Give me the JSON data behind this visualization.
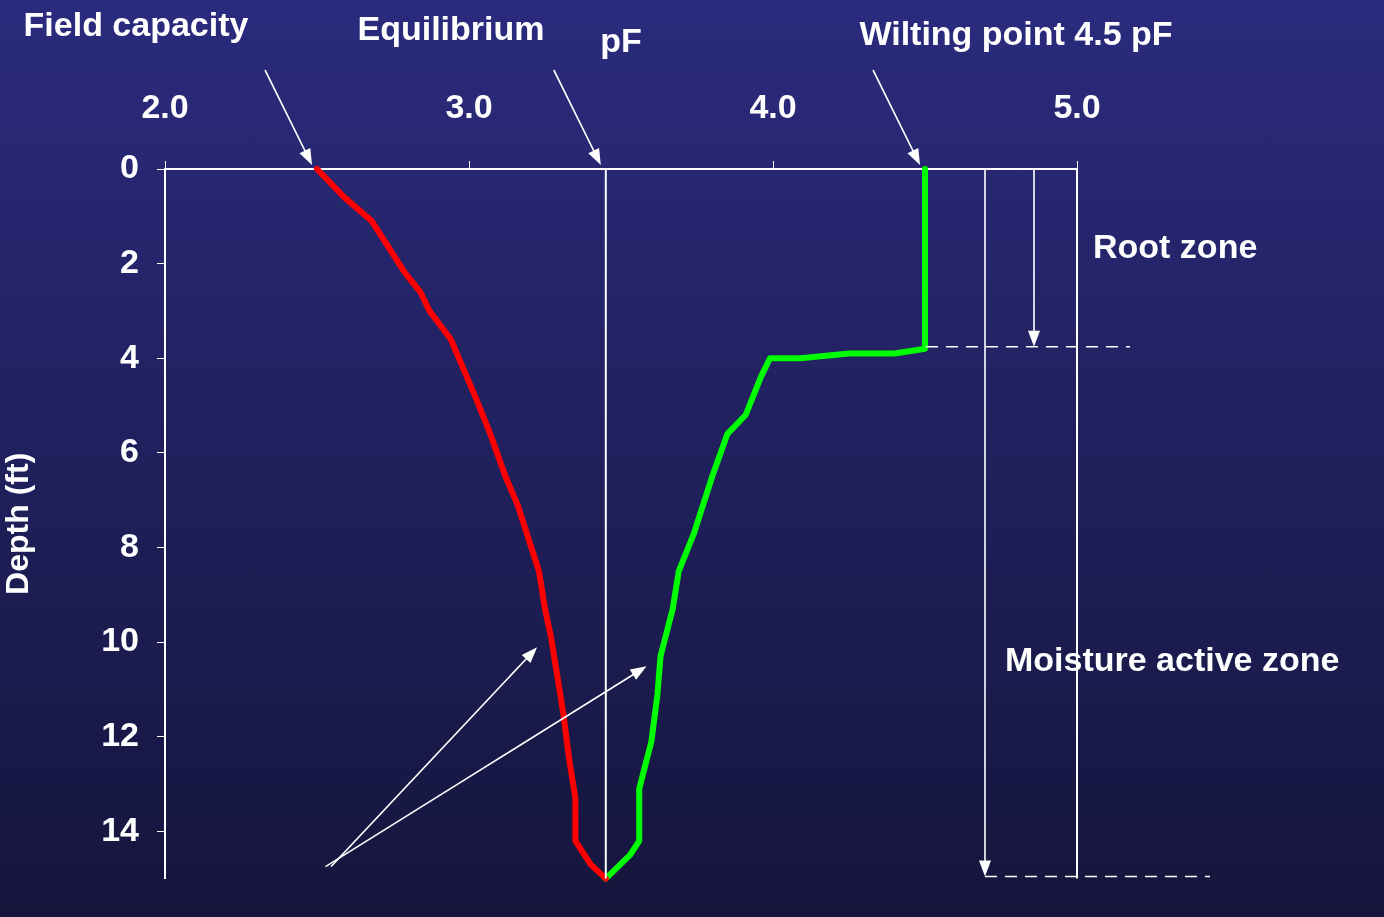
{
  "chart_data": {
    "type": "line",
    "xlabel": "pF",
    "ylabel": "Depth (ft)",
    "xlim": [
      2,
      5
    ],
    "xticks": [
      {
        "value": 2,
        "label": "2.0"
      },
      {
        "value": 3,
        "label": "3.0"
      },
      {
        "value": 4,
        "label": "4.0"
      },
      {
        "value": 5,
        "label": "5.0"
      }
    ],
    "ylim": [
      15,
      0
    ],
    "yticks": [
      0,
      2,
      4,
      6,
      8,
      10,
      12,
      14
    ],
    "grid": false,
    "legend": false,
    "marker": "none",
    "line_style": "solid",
    "series": [
      {
        "color": "#ff0000",
        "x": [
          2.5,
          2.59,
          2.68,
          2.72,
          2.79,
          2.84,
          2.87,
          2.94,
          2.98,
          3.02,
          3.07,
          3.12,
          3.16,
          3.2,
          3.23,
          3.25,
          3.27,
          3.29,
          3.31,
          3.33,
          3.35,
          3.35,
          3.4,
          3.45
        ],
        "values": [
          0,
          0.6,
          1.1,
          1.5,
          2.2,
          2.6,
          3.0,
          3.6,
          4.2,
          4.8,
          5.6,
          6.5,
          7.1,
          7.9,
          8.5,
          9.3,
          9.9,
          10.7,
          11.5,
          12.5,
          13.3,
          14.2,
          14.7,
          15
        ]
      },
      {
        "color": "#00ff00",
        "x": [
          3.45,
          3.53,
          3.56,
          3.56,
          3.6,
          3.62,
          3.63,
          3.67,
          3.69,
          3.74,
          3.8,
          3.85,
          3.91,
          3.96,
          3.99,
          4.09,
          4.25,
          4.4,
          4.5,
          4.5
        ],
        "values": [
          15,
          14.5,
          14.2,
          13.1,
          12.1,
          11.1,
          10.3,
          9.3,
          8.5,
          7.7,
          6.5,
          5.6,
          5.2,
          4.4,
          4.0,
          4.0,
          3.9,
          3.9,
          3.8,
          0
        ]
      }
    ],
    "ref_lines": [
      {
        "axis": "x",
        "value": 3.45,
        "color": "#ffffff"
      },
      {
        "axis": "y",
        "value": 3.8,
        "color": "#ffffff",
        "line_style": "dashed"
      },
      {
        "axis": "y",
        "value": 15,
        "color": "#ffffff",
        "line_style": "dashed"
      }
    ],
    "annotations": [
      "Field capacity",
      "Equilibrium",
      "Wilting point 4.5 pF",
      "Root zone",
      "Moisture active zone"
    ]
  }
}
